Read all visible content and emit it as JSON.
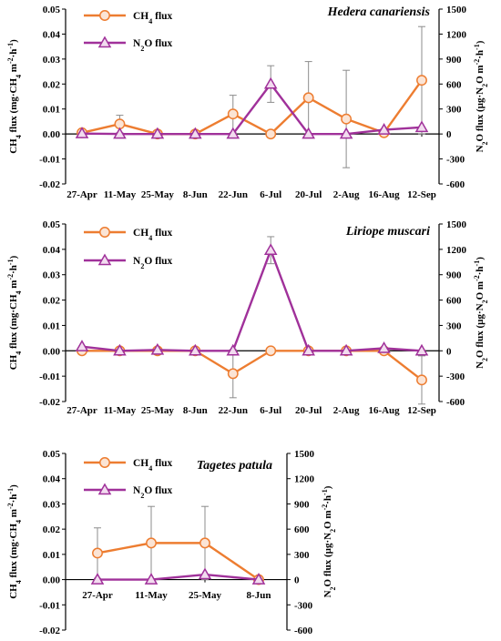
{
  "chart_data": [
    {
      "type": "line",
      "title": "Hedera canariensis",
      "categories": [
        "27-Apr",
        "11-May",
        "25-May",
        "8-Jun",
        "22-Jun",
        "6-Jul",
        "20-Jul",
        "2-Aug",
        "16-Aug",
        "12-Sep"
      ],
      "ylabel_left": "CH4 flux (mg·CH4 m-2·h-1)",
      "ylabel_right": "N2O flux (µg·N2O m-2·h-1)",
      "ylim_left": [
        -0.02,
        0.05
      ],
      "yticks_left": [
        "0.05",
        "0.04",
        "0.03",
        "0.02",
        "0.01",
        "0.00",
        "-0.01",
        "-0.02"
      ],
      "ylim_right": [
        -600,
        1500
      ],
      "yticks_right": [
        "1500",
        "1200",
        "900",
        "600",
        "300",
        "0",
        "-300",
        "-600"
      ],
      "grid": false,
      "legend": "top-left",
      "series": [
        {
          "name": "CH4 flux",
          "axis": "left",
          "color": "#ED7D31",
          "marker": "circle",
          "values": [
            0.0005,
            0.004,
            0.0,
            0.0,
            0.008,
            0.0,
            0.0145,
            0.006,
            0.0005,
            0.0215
          ],
          "err": [
            0.0,
            0.0035,
            0.0,
            0.0,
            0.0075,
            0.0,
            0.0145,
            0.0195,
            0.0,
            0.0215
          ]
        },
        {
          "name": "N2O flux",
          "axis": "right",
          "color": "#A0319A",
          "marker": "triangle",
          "values": [
            5,
            0,
            0,
            0,
            0,
            600,
            0,
            0,
            50,
            80
          ],
          "err": [
            0,
            0,
            0,
            0,
            0,
            220,
            0,
            0,
            0,
            0
          ]
        }
      ]
    },
    {
      "type": "line",
      "title": "Liriope muscari",
      "categories": [
        "27-Apr",
        "11-May",
        "25-May",
        "8-Jun",
        "22-Jun",
        "6-Jul",
        "20-Jul",
        "2-Aug",
        "16-Aug",
        "12-Sep"
      ],
      "ylabel_left": "CH4 flux (mg·CH4 m-2·h-1)",
      "ylabel_right": "N2O flux (µg·N2O m-2·h-1)",
      "ylim_left": [
        -0.02,
        0.05
      ],
      "yticks_left": [
        "0.05",
        "0.04",
        "0.03",
        "0.02",
        "0.01",
        "0.00",
        "-0.01",
        "-0.02"
      ],
      "ylim_right": [
        -600,
        1500
      ],
      "yticks_right": [
        "1500",
        "1200",
        "900",
        "600",
        "300",
        "0",
        "-300",
        "-600"
      ],
      "grid": false,
      "legend": "top-left",
      "series": [
        {
          "name": "CH4 flux",
          "axis": "left",
          "color": "#ED7D31",
          "marker": "circle",
          "values": [
            0.0,
            0.0,
            0.0,
            0.0,
            -0.009,
            0.0,
            0.0,
            0.0,
            0.0,
            -0.0115
          ],
          "err": [
            0.0,
            0.0,
            0.0,
            0.0,
            0.0095,
            0.0,
            0.0,
            0.0,
            0.0,
            0.0095
          ]
        },
        {
          "name": "N2O flux",
          "axis": "right",
          "color": "#A0319A",
          "marker": "triangle",
          "values": [
            50,
            0,
            10,
            0,
            0,
            1190,
            0,
            0,
            30,
            0
          ],
          "err": [
            0,
            0,
            0,
            0,
            0,
            160,
            0,
            0,
            0,
            0
          ]
        }
      ]
    },
    {
      "type": "line",
      "title": "Tagetes patula",
      "categories": [
        "27-Apr",
        "11-May",
        "25-May",
        "8-Jun"
      ],
      "ylabel_left": "CH4 flux (mg·CH4 m-2·h-1)",
      "ylabel_right": "N2O flux (µg·N2O m-2·h-1)",
      "ylim_left": [
        -0.02,
        0.05
      ],
      "yticks_left": [
        "0.05",
        "0.04",
        "0.03",
        "0.02",
        "0.01",
        "0.00",
        "-0.01",
        "-0.02"
      ],
      "ylim_right": [
        -600,
        1500
      ],
      "yticks_right": [
        "1500",
        "1200",
        "900",
        "600",
        "300",
        "0",
        "-300",
        "-600"
      ],
      "grid": false,
      "legend": "top-left",
      "series": [
        {
          "name": "CH4 flux",
          "axis": "left",
          "color": "#ED7D31",
          "marker": "circle",
          "values": [
            0.0105,
            0.0145,
            0.0145,
            0.0
          ],
          "err": [
            0.01,
            0.0145,
            0.0145,
            0.0
          ]
        },
        {
          "name": "N2O flux",
          "axis": "right",
          "color": "#A0319A",
          "marker": "triangle",
          "values": [
            0,
            0,
            60,
            0
          ],
          "err": [
            0,
            0,
            0,
            0
          ]
        }
      ]
    }
  ]
}
